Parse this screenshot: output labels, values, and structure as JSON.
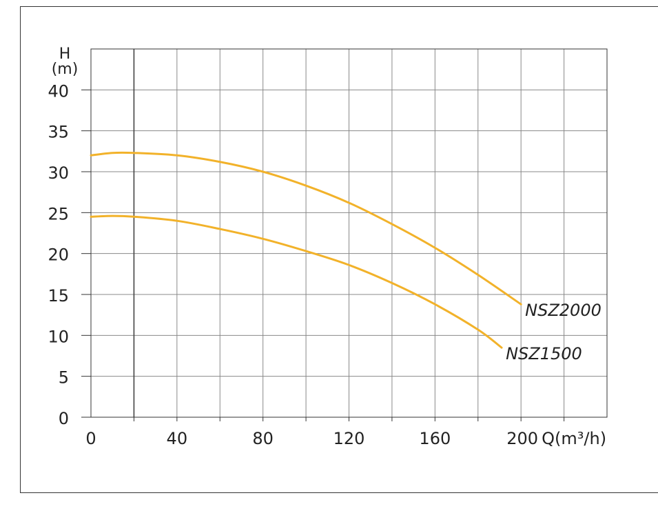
{
  "chart_data": {
    "type": "line",
    "xlabel": "Q(m³/h)",
    "ylabel_top": "H",
    "ylabel_unit": "(m)",
    "xlim": [
      0,
      240
    ],
    "ylim": [
      0,
      45
    ],
    "x_tick_labels": [
      "0",
      "40",
      "80",
      "120",
      "160",
      "200"
    ],
    "x_tick_values": [
      0,
      40,
      80,
      120,
      160,
      200
    ],
    "y_tick_labels": [
      "0",
      "5",
      "10",
      "15",
      "20",
      "25",
      "30",
      "35",
      "40"
    ],
    "y_tick_values": [
      0,
      5,
      10,
      15,
      20,
      25,
      30,
      35,
      40
    ],
    "grid": true,
    "grid_x_step": 20,
    "grid_y_step": 5,
    "series": [
      {
        "name": "NSZ2000",
        "color": "#F2B22A",
        "x": [
          0,
          10,
          20,
          40,
          60,
          80,
          100,
          120,
          140,
          160,
          180,
          200
        ],
        "y": [
          32.0,
          32.3,
          32.3,
          32.0,
          31.2,
          30.0,
          28.3,
          26.2,
          23.6,
          20.7,
          17.4,
          13.8
        ]
      },
      {
        "name": "NSZ1500",
        "color": "#F2B22A",
        "x": [
          0,
          10,
          20,
          40,
          60,
          80,
          100,
          120,
          140,
          160,
          180,
          191
        ],
        "y": [
          24.5,
          24.6,
          24.5,
          24.0,
          23.0,
          21.8,
          20.3,
          18.6,
          16.4,
          13.8,
          10.7,
          8.5
        ]
      }
    ]
  }
}
